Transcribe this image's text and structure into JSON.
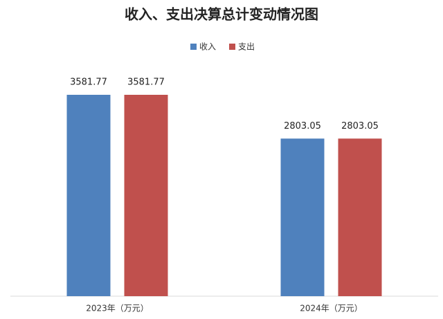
{
  "chart_data": {
    "type": "bar",
    "title": "收入、支出决算总计变动情况图",
    "categories": [
      "2023年（万元）",
      "2024年（万元）"
    ],
    "series": [
      {
        "name": "收入",
        "color": "#4f81bd",
        "values": [
          3581.77,
          2803.05
        ]
      },
      {
        "name": "支出",
        "color": "#c0504d",
        "values": [
          3581.77,
          2803.05
        ]
      }
    ],
    "data_labels": true,
    "legend": "top"
  }
}
